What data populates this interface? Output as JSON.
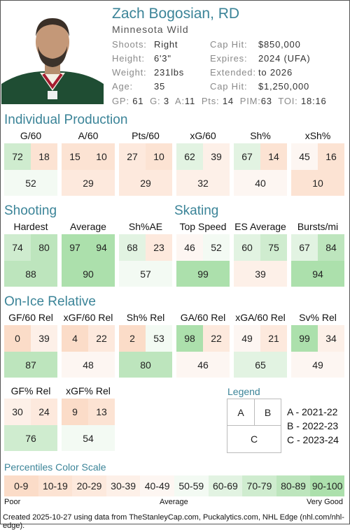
{
  "player": {
    "name": "Zach Bogosian, RD",
    "team": "Minnesota Wild",
    "labels": {
      "shoots": "Shoots:",
      "height": "Height:",
      "weight": "Weight:",
      "age": "Age:",
      "caphit": "Cap Hit:",
      "expires": "Expires:",
      "extended": "Extended:",
      "caphit2": "Cap Hit:"
    },
    "values": {
      "shoots": "Right",
      "height": "6'3\"",
      "weight": "231lbs",
      "age": "35",
      "caphit": "$850,000",
      "expires": "2024 (UFA)",
      "extended": "to 2026",
      "caphit2": "$1,250,000"
    },
    "stats": {
      "gp_l": "GP:",
      "gp": "61",
      "g_l": "G:",
      "g": "3",
      "a_l": "A:",
      "a": "11",
      "pts_l": "Pts:",
      "pts": "14",
      "pim_l": "PIM:",
      "pim": "63",
      "toi_l": "TOI:",
      "toi": "18:16"
    }
  },
  "sections": {
    "individual": "Individual Production",
    "shooting": "Shooting",
    "skating": "Skating",
    "onice": "On-Ice Relative"
  },
  "metrics": {
    "g60": {
      "label": "G/60",
      "a": "72",
      "b": "18",
      "c": "52"
    },
    "a60": {
      "label": "A/60",
      "a": "15",
      "b": "10",
      "c": "29"
    },
    "pts60": {
      "label": "Pts/60",
      "a": "27",
      "b": "10",
      "c": "29"
    },
    "xg60": {
      "label": "xG/60",
      "a": "62",
      "b": "39",
      "c": "32"
    },
    "sh": {
      "label": "Sh%",
      "a": "67",
      "b": "14",
      "c": "40"
    },
    "xsh": {
      "label": "xSh%",
      "a": "45",
      "b": "16",
      "c": "10"
    },
    "hardest": {
      "label": "Hardest",
      "a": "74",
      "b": "80",
      "c": "88"
    },
    "average": {
      "label": "Average",
      "a": "97",
      "b": "94",
      "c": "90"
    },
    "shae": {
      "label": "Sh%AE",
      "a": "68",
      "b": "23",
      "c": "57"
    },
    "topspeed": {
      "label": "Top Speed",
      "a": "46",
      "b": "52",
      "c": "99"
    },
    "esavg": {
      "label": "ES Average",
      "a": "60",
      "b": "75",
      "c": "39"
    },
    "bursts": {
      "label": "Bursts/mi",
      "a": "67",
      "b": "84",
      "c": "94"
    },
    "gf60": {
      "label": "GF/60 Rel",
      "a": "0",
      "b": "39",
      "c": "87"
    },
    "xgf60": {
      "label": "xGF/60 Rel",
      "a": "4",
      "b": "22",
      "c": "48"
    },
    "shrel": {
      "label": "Sh% Rel",
      "a": "2",
      "b": "53",
      "c": "80"
    },
    "ga60": {
      "label": "GA/60 Rel",
      "a": "98",
      "b": "22",
      "c": "46"
    },
    "xga60": {
      "label": "xGA/60 Rel",
      "a": "49",
      "b": "21",
      "c": "65"
    },
    "svrel": {
      "label": "Sv% Rel",
      "a": "99",
      "b": "34",
      "c": "49"
    },
    "gfpct": {
      "label": "GF% Rel",
      "a": "30",
      "b": "24",
      "c": "76"
    },
    "xgfpct": {
      "label": "xGF% Rel",
      "a": "9",
      "b": "13",
      "c": "54"
    }
  },
  "legend": {
    "title": "Legend",
    "a": "A",
    "b": "B",
    "c": "C",
    "a_desc": "A - 2021-22",
    "b_desc": "B - 2022-23",
    "c_desc": "C - 2023-24"
  },
  "scale": {
    "title": "Percentiles Color Scale",
    "bins": [
      "0-9",
      "10-19",
      "20-29",
      "30-39",
      "40-49",
      "50-59",
      "60-69",
      "70-79",
      "80-89",
      "90-100"
    ],
    "colors": [
      "#fbdcc8",
      "#fce3d3",
      "#fde9dd",
      "#fdf0e8",
      "#fdf6f2",
      "#f3faf3",
      "#e2f3e2",
      "#cfeccf",
      "#bde5bd",
      "#ace0ac"
    ],
    "poor": "Poor",
    "average": "Average",
    "very_good": "Very Good"
  },
  "footer": "Created 2025-10-27 using data from TheStanleyCap.com, Puckalytics.com, NHL Edge (nhl.com/nhl-edge)."
}
